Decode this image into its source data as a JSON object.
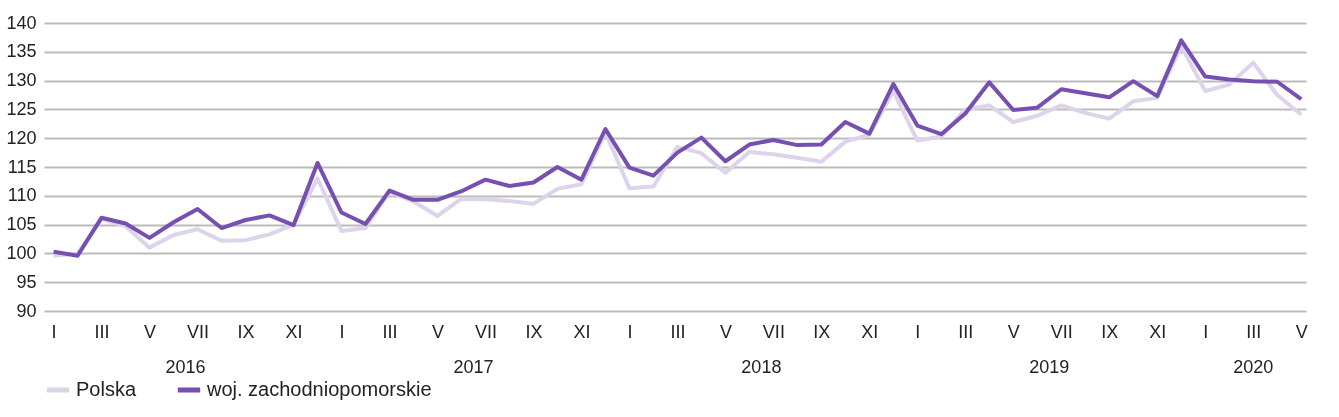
{
  "chart_data": {
    "type": "line",
    "categories": [
      "I",
      null,
      "III",
      null,
      "V",
      null,
      "VII",
      null,
      "IX",
      null,
      "XI",
      null,
      "I",
      null,
      "III",
      null,
      "V",
      null,
      "VII",
      null,
      "IX",
      null,
      "XI",
      null,
      "I",
      null,
      "III",
      null,
      "V",
      null,
      "VII",
      null,
      "IX",
      null,
      "XI",
      null,
      "I",
      null,
      "III",
      null,
      "V",
      null,
      "VII",
      null,
      "IX",
      null,
      "XI",
      null,
      "I",
      null,
      "III",
      null,
      "V"
    ],
    "annotations": [
      "2016",
      "2017",
      "2018",
      "2019",
      "2020"
    ],
    "series": [
      {
        "name": "Polska",
        "color": "#ddd3ea",
        "values": [
          99.6,
          100.0,
          106.0,
          104.7,
          101.0,
          103.2,
          104.2,
          102.2,
          102.3,
          103.3,
          105.0,
          113.0,
          103.9,
          104.4,
          110.7,
          109.0,
          106.5,
          109.5,
          109.4,
          109.1,
          108.6,
          111.2,
          112.0,
          121.0,
          111.3,
          111.6,
          118.5,
          117.4,
          114.0,
          117.6,
          117.2,
          116.6,
          115.9,
          119.4,
          120.6,
          128.2,
          119.6,
          120.3,
          125.0,
          125.7,
          122.8,
          123.9,
          125.7,
          124.4,
          123.4,
          126.4,
          127.0,
          136.0,
          128.2,
          129.3,
          133.1,
          127.5,
          124.1
        ]
      },
      {
        "name": "woj. zachodniopomorskie",
        "color": "#7650b0",
        "values": [
          100.3,
          99.6,
          106.2,
          105.2,
          102.7,
          105.4,
          107.7,
          104.4,
          105.8,
          106.6,
          104.9,
          115.7,
          107.1,
          105.1,
          110.9,
          109.3,
          109.3,
          110.8,
          112.8,
          111.7,
          112.3,
          115.0,
          112.8,
          121.6,
          114.9,
          113.5,
          117.5,
          120.1,
          116.0,
          118.9,
          119.7,
          118.8,
          118.9,
          122.8,
          120.8,
          129.4,
          122.2,
          120.7,
          124.3,
          129.7,
          124.9,
          125.3,
          128.5,
          127.8,
          127.1,
          129.9,
          127.3,
          137.0,
          130.7,
          130.2,
          129.9,
          129.8,
          126.8
        ]
      }
    ],
    "ylim": [
      90,
      140
    ],
    "yticks": [
      90,
      95,
      100,
      105,
      110,
      115,
      120,
      125,
      130,
      135,
      140
    ],
    "grid": "y",
    "legend": "bottom",
    "marker": "none",
    "line_style": "solid"
  }
}
